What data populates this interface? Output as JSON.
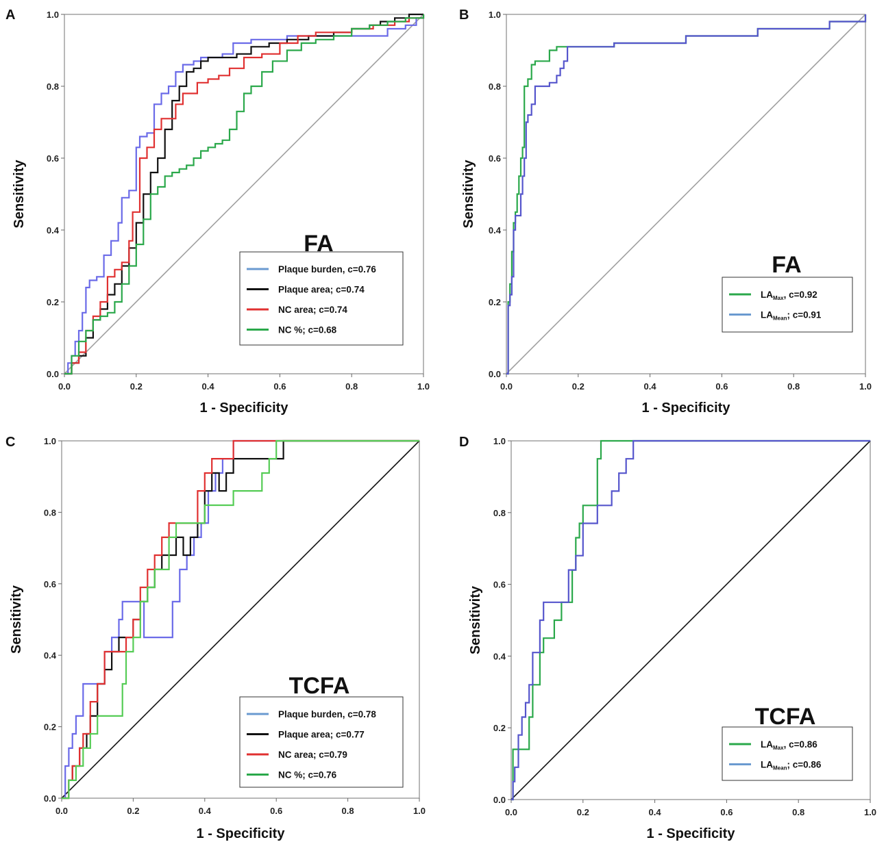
{
  "chart_data": [
    {
      "type": "line",
      "panel": "A",
      "title": "FA",
      "xlabel": "1 - Specificity",
      "ylabel": "Sensitivity",
      "xlim": [
        0,
        1
      ],
      "ylim": [
        0,
        1
      ],
      "ticks": [
        "0.0",
        "0.2",
        "0.4",
        "0.6",
        "0.8",
        "1.0"
      ],
      "legend_position": "bottom-right",
      "reference_line": {
        "x": [
          0,
          1
        ],
        "y": [
          0,
          1
        ],
        "color": "#a0a0a0"
      },
      "series": [
        {
          "name": "Plaque burden, c=0.76",
          "color": "#6a6ae8",
          "legend_color": "#6a9ad0",
          "x": [
            0,
            0.01,
            0.02,
            0.03,
            0.04,
            0.05,
            0.06,
            0.07,
            0.09,
            0.11,
            0.13,
            0.15,
            0.16,
            0.18,
            0.2,
            0.21,
            0.23,
            0.25,
            0.27,
            0.29,
            0.31,
            0.33,
            0.36,
            0.38,
            0.41,
            0.44,
            0.47,
            0.52,
            0.56,
            0.62,
            0.68,
            0.75,
            0.8,
            0.86,
            0.9,
            0.95,
            0.98,
            1
          ],
          "y": [
            0,
            0.03,
            0.05,
            0.09,
            0.12,
            0.17,
            0.24,
            0.26,
            0.27,
            0.33,
            0.37,
            0.42,
            0.49,
            0.51,
            0.63,
            0.66,
            0.67,
            0.75,
            0.78,
            0.8,
            0.84,
            0.86,
            0.87,
            0.88,
            0.88,
            0.89,
            0.92,
            0.93,
            0.93,
            0.94,
            0.94,
            0.94,
            0.94,
            0.94,
            0.96,
            0.97,
            0.99,
            1
          ]
        },
        {
          "name": "Plaque area; c=0.74",
          "color": "#111111",
          "legend_color": "#111111",
          "x": [
            0,
            0.02,
            0.04,
            0.06,
            0.08,
            0.1,
            0.12,
            0.14,
            0.16,
            0.18,
            0.2,
            0.22,
            0.24,
            0.26,
            0.28,
            0.3,
            0.32,
            0.34,
            0.36,
            0.38,
            0.4,
            0.44,
            0.48,
            0.52,
            0.57,
            0.62,
            0.68,
            0.75,
            0.8,
            0.85,
            0.88,
            0.92,
            0.96,
            1
          ],
          "y": [
            0,
            0.03,
            0.05,
            0.1,
            0.15,
            0.18,
            0.22,
            0.25,
            0.3,
            0.35,
            0.42,
            0.5,
            0.56,
            0.6,
            0.68,
            0.76,
            0.8,
            0.84,
            0.85,
            0.87,
            0.88,
            0.88,
            0.89,
            0.91,
            0.92,
            0.93,
            0.94,
            0.95,
            0.96,
            0.97,
            0.98,
            0.99,
            1,
            1
          ]
        },
        {
          "name": "NC area; c=0.74",
          "color": "#e03030",
          "legend_color": "#e03030",
          "x": [
            0,
            0.02,
            0.04,
            0.06,
            0.08,
            0.1,
            0.12,
            0.14,
            0.16,
            0.18,
            0.19,
            0.21,
            0.23,
            0.25,
            0.27,
            0.29,
            0.31,
            0.33,
            0.35,
            0.37,
            0.4,
            0.43,
            0.46,
            0.5,
            0.55,
            0.6,
            0.65,
            0.7,
            0.75,
            0.8,
            0.86,
            0.92,
            0.96,
            1
          ],
          "y": [
            0,
            0.03,
            0.06,
            0.12,
            0.16,
            0.2,
            0.27,
            0.29,
            0.31,
            0.37,
            0.45,
            0.6,
            0.63,
            0.68,
            0.71,
            0.71,
            0.75,
            0.78,
            0.78,
            0.81,
            0.82,
            0.83,
            0.85,
            0.88,
            0.89,
            0.92,
            0.94,
            0.95,
            0.95,
            0.96,
            0.97,
            0.98,
            0.99,
            1
          ]
        },
        {
          "name": "NC %; c=0.68",
          "color": "#2aa84a",
          "legend_color": "#2aa84a",
          "x": [
            0,
            0.02,
            0.04,
            0.06,
            0.08,
            0.1,
            0.12,
            0.14,
            0.16,
            0.18,
            0.2,
            0.22,
            0.24,
            0.26,
            0.28,
            0.3,
            0.32,
            0.34,
            0.36,
            0.38,
            0.4,
            0.42,
            0.44,
            0.46,
            0.48,
            0.5,
            0.52,
            0.55,
            0.58,
            0.62,
            0.66,
            0.7,
            0.75,
            0.8,
            0.85,
            0.9,
            0.95,
            1
          ],
          "y": [
            0,
            0.05,
            0.09,
            0.12,
            0.15,
            0.16,
            0.17,
            0.2,
            0.25,
            0.3,
            0.36,
            0.43,
            0.5,
            0.52,
            0.55,
            0.56,
            0.57,
            0.58,
            0.6,
            0.62,
            0.63,
            0.64,
            0.65,
            0.68,
            0.73,
            0.78,
            0.8,
            0.84,
            0.87,
            0.9,
            0.92,
            0.93,
            0.94,
            0.96,
            0.97,
            0.98,
            0.99,
            1
          ]
        }
      ]
    },
    {
      "type": "line",
      "panel": "B",
      "title": "FA",
      "xlabel": "1 - Specificity",
      "ylabel": "Sensitivity",
      "xlim": [
        0,
        1
      ],
      "ylim": [
        0,
        1
      ],
      "ticks": [
        "0.0",
        "0.2",
        "0.4",
        "0.6",
        "0.8",
        "1.0"
      ],
      "legend_position": "bottom-right",
      "reference_line": {
        "x": [
          0,
          1
        ],
        "y": [
          0,
          1
        ],
        "color": "#a0a0a0"
      },
      "series": [
        {
          "name": "LA",
          "sub": "Max",
          "suffix": ", c=0.92",
          "color": "#2aa84a",
          "legend_color": "#2aa84a",
          "x": [
            0,
            0.005,
            0.01,
            0.015,
            0.02,
            0.025,
            0.03,
            0.035,
            0.04,
            0.045,
            0.05,
            0.06,
            0.07,
            0.08,
            0.1,
            0.12,
            0.14,
            0.16,
            0.18,
            0.3,
            0.5,
            0.7,
            0.9,
            1
          ],
          "y": [
            0,
            0.2,
            0.25,
            0.34,
            0.42,
            0.45,
            0.5,
            0.55,
            0.6,
            0.63,
            0.8,
            0.82,
            0.86,
            0.87,
            0.87,
            0.9,
            0.91,
            0.91,
            0.91,
            0.92,
            0.94,
            0.96,
            0.98,
            1
          ]
        },
        {
          "name": "LA",
          "sub": "Mean",
          "suffix": "; c=0.91",
          "color": "#5555cc",
          "legend_color": "#6a9ad0",
          "x": [
            0,
            0.005,
            0.01,
            0.015,
            0.02,
            0.025,
            0.03,
            0.04,
            0.045,
            0.05,
            0.055,
            0.06,
            0.07,
            0.08,
            0.1,
            0.12,
            0.14,
            0.15,
            0.16,
            0.17,
            0.3,
            0.5,
            0.7,
            0.9,
            1
          ],
          "y": [
            0,
            0.19,
            0.22,
            0.27,
            0.4,
            0.44,
            0.44,
            0.5,
            0.55,
            0.6,
            0.7,
            0.72,
            0.75,
            0.8,
            0.8,
            0.81,
            0.83,
            0.85,
            0.87,
            0.91,
            0.92,
            0.94,
            0.96,
            0.98,
            1
          ]
        }
      ]
    },
    {
      "type": "line",
      "panel": "C",
      "title": "TCFA",
      "xlabel": "1 - Specificity",
      "ylabel": "Sensitivity",
      "xlim": [
        0,
        1
      ],
      "ylim": [
        0,
        1
      ],
      "ticks": [
        "0.0",
        "0.2",
        "0.4",
        "0.6",
        "0.8",
        "1.0"
      ],
      "legend_position": "bottom-right",
      "reference_line": {
        "x": [
          0,
          1
        ],
        "y": [
          0,
          1
        ],
        "color": "#111111"
      },
      "series": [
        {
          "name": "Plaque burden, c=0.78",
          "color": "#6a6ae8",
          "legend_color": "#6a9ad0",
          "x": [
            0,
            0.01,
            0.02,
            0.03,
            0.04,
            0.05,
            0.06,
            0.1,
            0.12,
            0.14,
            0.16,
            0.17,
            0.19,
            0.22,
            0.23,
            0.3,
            0.31,
            0.33,
            0.35,
            0.37,
            0.39,
            0.41,
            0.43,
            0.45,
            0.47,
            0.48,
            0.55,
            0.65,
            0.8,
            1
          ],
          "y": [
            0,
            0.09,
            0.14,
            0.18,
            0.23,
            0.23,
            0.32,
            0.32,
            0.41,
            0.45,
            0.5,
            0.55,
            0.55,
            0.55,
            0.45,
            0.45,
            0.55,
            0.64,
            0.68,
            0.73,
            0.77,
            0.86,
            0.91,
            0.95,
            0.95,
            1,
            1,
            1,
            1,
            1
          ]
        },
        {
          "name": "Plaque area; c=0.77",
          "color": "#111111",
          "legend_color": "#111111",
          "x": [
            0,
            0.02,
            0.03,
            0.05,
            0.07,
            0.08,
            0.1,
            0.12,
            0.14,
            0.16,
            0.18,
            0.2,
            0.22,
            0.24,
            0.26,
            0.28,
            0.3,
            0.32,
            0.34,
            0.36,
            0.38,
            0.4,
            0.42,
            0.44,
            0.46,
            0.48,
            0.5,
            0.52,
            0.6,
            0.62,
            0.7,
            0.8,
            1
          ],
          "y": [
            0,
            0.05,
            0.09,
            0.14,
            0.18,
            0.23,
            0.32,
            0.36,
            0.41,
            0.45,
            0.45,
            0.5,
            0.55,
            0.59,
            0.64,
            0.68,
            0.68,
            0.73,
            0.68,
            0.73,
            0.77,
            0.86,
            0.91,
            0.86,
            0.91,
            0.95,
            0.95,
            0.95,
            0.95,
            1,
            1,
            1,
            1
          ]
        },
        {
          "name": "NC area; c=0.79",
          "color": "#e03030",
          "legend_color": "#e03030",
          "x": [
            0,
            0.02,
            0.03,
            0.05,
            0.06,
            0.08,
            0.1,
            0.12,
            0.14,
            0.16,
            0.18,
            0.2,
            0.22,
            0.24,
            0.26,
            0.28,
            0.3,
            0.36,
            0.38,
            0.4,
            0.42,
            0.44,
            0.48,
            0.5,
            0.55,
            0.65,
            0.8,
            1
          ],
          "y": [
            0,
            0.05,
            0.09,
            0.14,
            0.18,
            0.27,
            0.32,
            0.41,
            0.41,
            0.41,
            0.45,
            0.5,
            0.59,
            0.64,
            0.68,
            0.73,
            0.77,
            0.77,
            0.86,
            0.91,
            0.95,
            0.95,
            1,
            1,
            1,
            1,
            1,
            1
          ]
        },
        {
          "name": "NC %; c=0.76",
          "color": "#55cc55",
          "legend_color": "#2aa84a",
          "x": [
            0,
            0.02,
            0.04,
            0.06,
            0.08,
            0.1,
            0.12,
            0.14,
            0.16,
            0.17,
            0.18,
            0.2,
            0.22,
            0.24,
            0.26,
            0.28,
            0.3,
            0.32,
            0.34,
            0.36,
            0.38,
            0.4,
            0.42,
            0.44,
            0.46,
            0.48,
            0.5,
            0.52,
            0.54,
            0.56,
            0.58,
            0.6,
            0.7,
            1
          ],
          "y": [
            0,
            0.05,
            0.09,
            0.14,
            0.18,
            0.23,
            0.23,
            0.23,
            0.23,
            0.32,
            0.41,
            0.45,
            0.55,
            0.59,
            0.64,
            0.64,
            0.73,
            0.77,
            0.77,
            0.77,
            0.77,
            0.82,
            0.82,
            0.82,
            0.82,
            0.86,
            0.86,
            0.86,
            0.86,
            0.91,
            0.95,
            1,
            1,
            1
          ]
        }
      ]
    },
    {
      "type": "line",
      "panel": "D",
      "title": "TCFA",
      "xlabel": "1 - Specificity",
      "ylabel": "Sensitivity",
      "xlim": [
        0,
        1
      ],
      "ylim": [
        0,
        1
      ],
      "ticks": [
        "0.0",
        "0.2",
        "0.4",
        "0.6",
        "0.8",
        "1.0"
      ],
      "legend_position": "bottom-right",
      "reference_line": {
        "x": [
          0,
          1
        ],
        "y": [
          0,
          1
        ],
        "color": "#111111"
      },
      "series": [
        {
          "name": "LA",
          "sub": "Max",
          "suffix": ", c=0.86",
          "color": "#2aa84a",
          "legend_color": "#2aa84a",
          "x": [
            0,
            0.005,
            0.01,
            0.02,
            0.04,
            0.05,
            0.06,
            0.08,
            0.09,
            0.1,
            0.12,
            0.14,
            0.15,
            0.17,
            0.18,
            0.19,
            0.2,
            0.21,
            0.22,
            0.24,
            0.25,
            0.26,
            0.4,
            0.6,
            0.8,
            1
          ],
          "y": [
            0,
            0.14,
            0.14,
            0.14,
            0.14,
            0.23,
            0.32,
            0.41,
            0.45,
            0.45,
            0.5,
            0.55,
            0.55,
            0.64,
            0.73,
            0.77,
            0.82,
            0.82,
            0.82,
            0.95,
            1,
            1,
            1,
            1,
            1,
            1
          ]
        },
        {
          "name": "LA",
          "sub": "Mean",
          "suffix": "; c=0.86",
          "color": "#5555cc",
          "legend_color": "#6a9ad0",
          "x": [
            0,
            0.005,
            0.01,
            0.02,
            0.03,
            0.04,
            0.05,
            0.06,
            0.08,
            0.09,
            0.1,
            0.12,
            0.14,
            0.16,
            0.18,
            0.2,
            0.22,
            0.24,
            0.26,
            0.28,
            0.3,
            0.32,
            0.34,
            0.35,
            0.5,
            0.7,
            1
          ],
          "y": [
            0,
            0.05,
            0.09,
            0.18,
            0.23,
            0.27,
            0.32,
            0.41,
            0.5,
            0.55,
            0.55,
            0.55,
            0.55,
            0.64,
            0.68,
            0.77,
            0.77,
            0.82,
            0.82,
            0.86,
            0.91,
            0.95,
            1,
            1,
            1,
            1,
            1
          ]
        }
      ]
    }
  ]
}
